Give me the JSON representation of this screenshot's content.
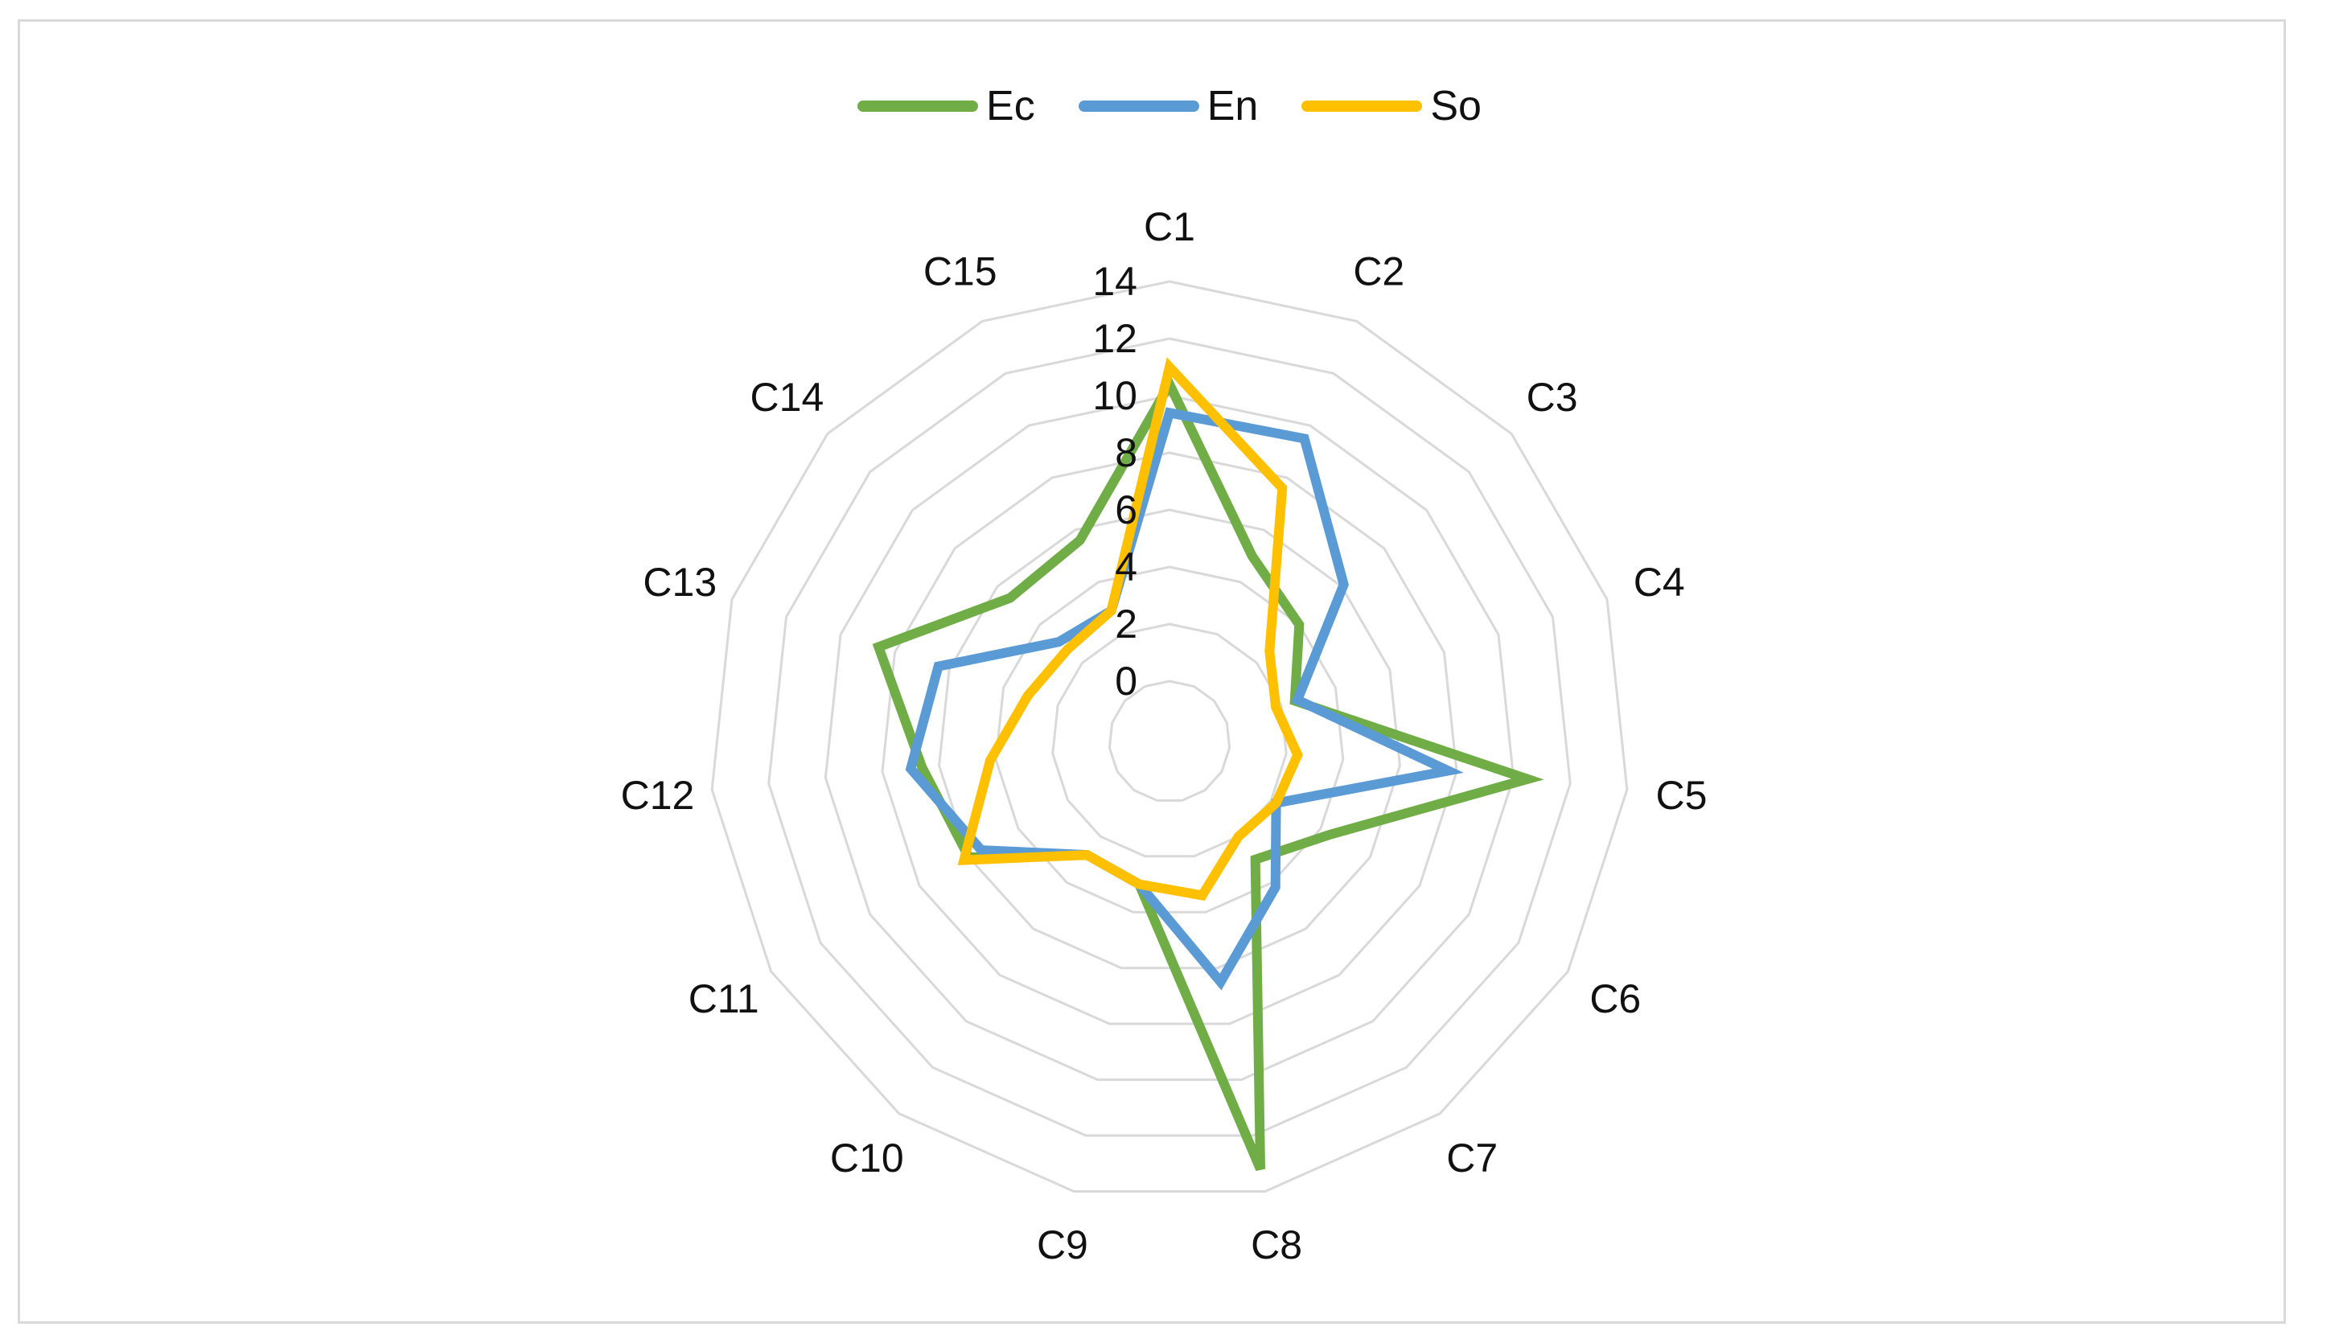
{
  "chart_data": {
    "type": "radar",
    "title": "",
    "categories": [
      "C1",
      "C2",
      "C3",
      "C4",
      "C5",
      "C6",
      "C7",
      "C8",
      "C9",
      "C10",
      "C11",
      "C12",
      "C13",
      "C14",
      "C15"
    ],
    "r_ticks": [
      "0",
      "2",
      "4",
      "6",
      "8",
      "10",
      "12",
      "14"
    ],
    "rlim": [
      0,
      14
    ],
    "legend_position": "top",
    "grid": true,
    "series": [
      {
        "name": "Ec",
        "color": "#70ad47",
        "values": [
          10.4,
          5.0,
          4.0,
          2.5,
          10.5,
          4.4,
          3.0,
          13.2,
          3.0,
          2.8,
          6.0,
          6.6,
          8.6,
          5.4,
          5.6
        ]
      },
      {
        "name": "En",
        "color": "#5b9bd5",
        "values": [
          9.4,
          9.5,
          6.1,
          2.6,
          7.7,
          2.2,
          4.2,
          6.5,
          3.0,
          2.8,
          5.5,
          7.0,
          6.4,
          3.1,
          2.9
        ]
      },
      {
        "name": "So",
        "color": "#ffc000",
        "values": [
          11.0,
          7.6,
          2.6,
          1.8,
          2.4,
          2.2,
          2.0,
          3.4,
          3.0,
          2.8,
          6.2,
          4.2,
          3.1,
          2.7,
          2.9
        ]
      }
    ]
  }
}
